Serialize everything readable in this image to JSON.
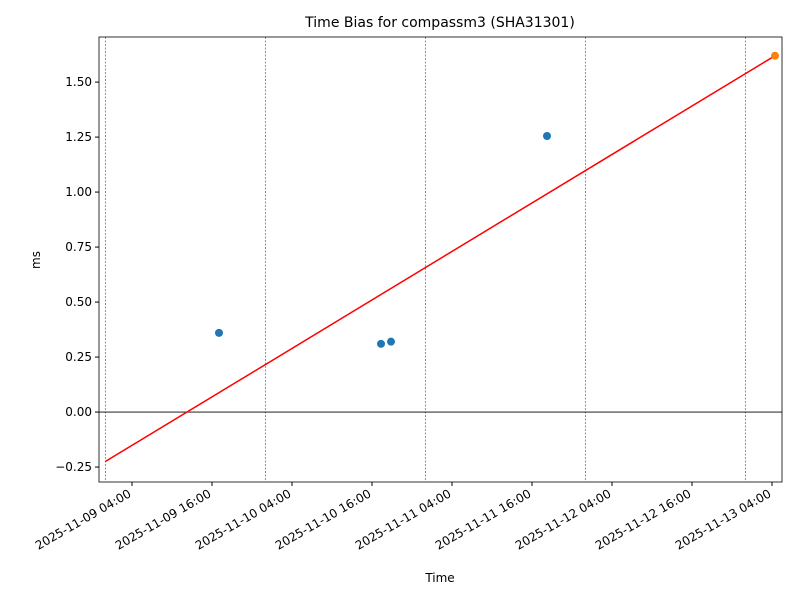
{
  "chart_data": {
    "type": "scatter",
    "title": "Time Bias for compassm3 (SHA31301)",
    "xlabel": "Time",
    "ylabel": "ms",
    "xlim": [
      "2025-11-08 23:03",
      "2025-11-13 05:30"
    ],
    "xticks": [
      "2025-11-09 04:00",
      "2025-11-09 16:00",
      "2025-11-10 04:00",
      "2025-11-10 16:00",
      "2025-11-11 04:00",
      "2025-11-11 16:00",
      "2025-11-12 04:00",
      "2025-11-12 16:00",
      "2025-11-13 04:00"
    ],
    "ylim": [
      -0.318,
      1.705
    ],
    "yticks": [
      {
        "value": -0.25,
        "label": "−0.25"
      },
      {
        "value": 0,
        "label": "0.00"
      },
      {
        "value": 0.25,
        "label": "0.25"
      },
      {
        "value": 0.5,
        "label": "0.50"
      },
      {
        "value": 0.75,
        "label": "0.75"
      },
      {
        "value": 1,
        "label": "1.00"
      },
      {
        "value": 1.25,
        "label": "1.25"
      },
      {
        "value": 1.5,
        "label": "1.50"
      }
    ],
    "series": [
      {
        "color": "#1f77b4",
        "x": [
          "2025-11-09 17:03",
          "2025-11-10 17:21",
          "2025-11-10 18:51",
          "2025-11-11 18:15"
        ],
        "values": [
          0.36,
          0.31,
          0.32,
          1.255
        ]
      },
      {
        "color": "#ff7f0e",
        "x": [
          "2025-11-13 04:27"
        ],
        "values": [
          1.62
        ]
      }
    ],
    "fit": {
      "color": "#ff0000",
      "x": [
        "2025-11-09 00:00",
        "2025-11-13 04:27"
      ],
      "values": [
        -0.225,
        1.62
      ]
    },
    "vlines": [
      "2025-11-09 00:00",
      "2025-11-10 00:00",
      "2025-11-11 00:00",
      "2025-11-12 00:00",
      "2025-11-13 00:00"
    ],
    "vline_color": "#1f77b4",
    "zero_line": true
  }
}
